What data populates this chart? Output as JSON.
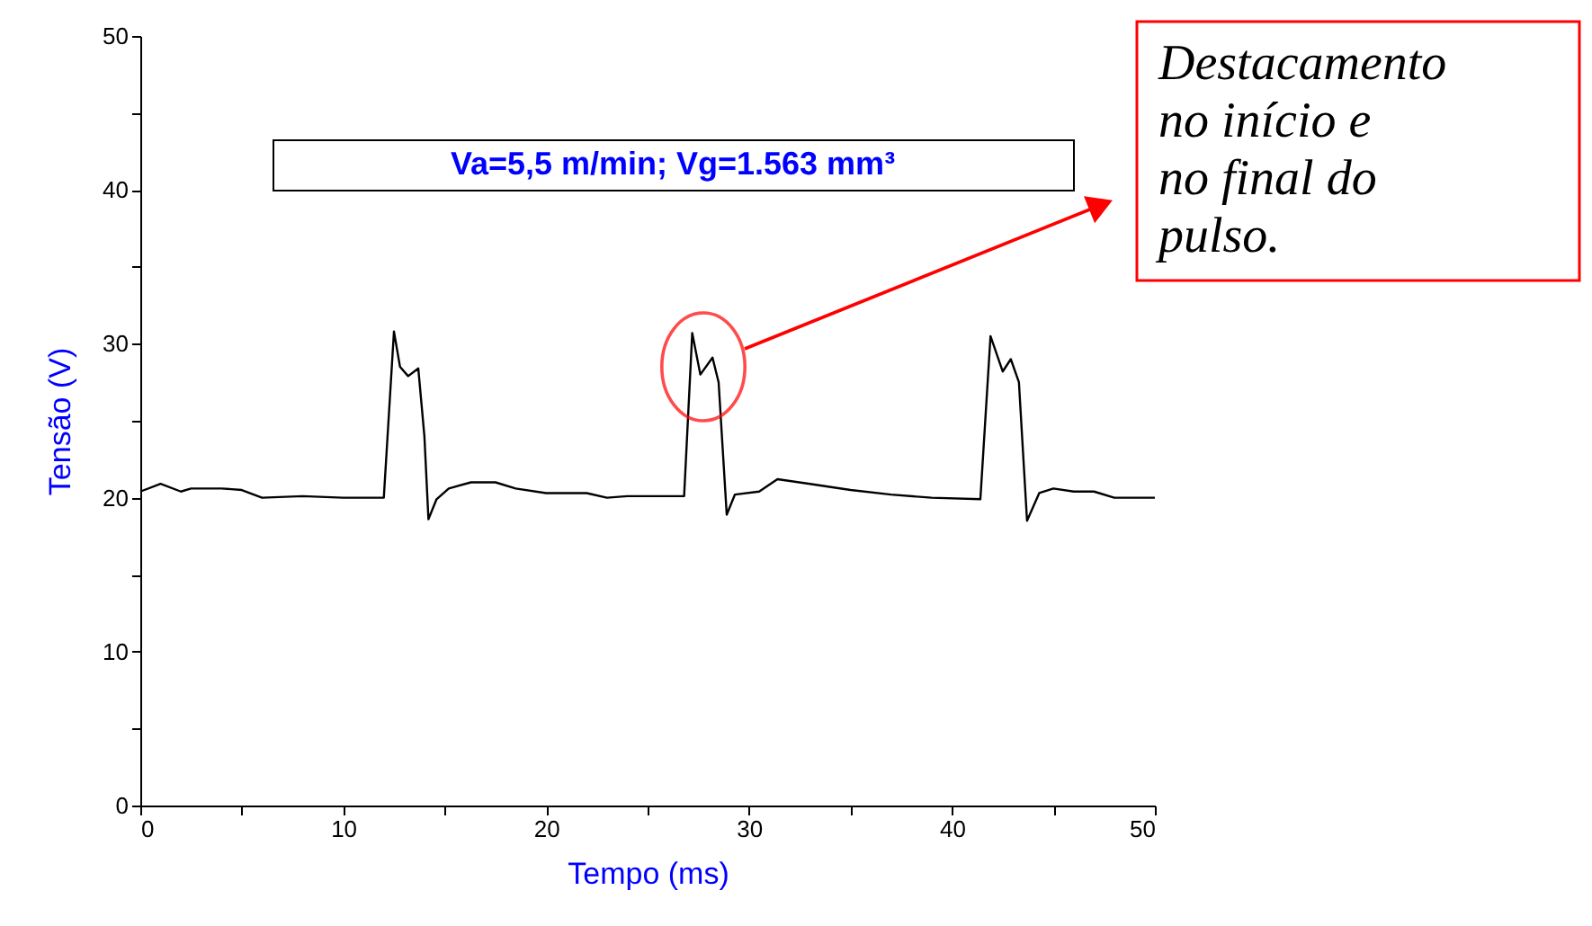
{
  "chart_data": {
    "type": "line",
    "xlabel": "Tempo (ms)",
    "ylabel": "Tensão (V)",
    "x": [
      0,
      1,
      2,
      2.5,
      4,
      5,
      6,
      8,
      10,
      12.0,
      12.5,
      12.8,
      13.2,
      13.7,
      14.0,
      14.2,
      14.6,
      15.2,
      16.3,
      17.5,
      18.5,
      20,
      22,
      23,
      24,
      25,
      26.8,
      27.2,
      27.6,
      28.2,
      28.5,
      28.9,
      29.3,
      30.5,
      31.4,
      33,
      35,
      37,
      39,
      41.4,
      41.9,
      42.5,
      42.9,
      43.3,
      43.7,
      44.3,
      45,
      46,
      47,
      48,
      50
    ],
    "series": [
      {
        "color": "#000000",
        "values": [
          20.4,
          20.9,
          20.4,
          20.6,
          20.6,
          20.5,
          20.0,
          20.1,
          20.0,
          20.0,
          30.8,
          28.5,
          27.9,
          28.4,
          24.0,
          18.6,
          19.9,
          20.6,
          21.0,
          21.0,
          20.6,
          20.3,
          20.3,
          20.0,
          20.1,
          20.1,
          20.1,
          30.7,
          28.0,
          29.1,
          27.5,
          18.9,
          20.2,
          20.4,
          21.2,
          20.9,
          20.5,
          20.2,
          20.0,
          19.9,
          30.5,
          28.2,
          29.0,
          27.5,
          18.5,
          20.3,
          20.6,
          20.4,
          20.4,
          20.0,
          20.0
        ]
      }
    ],
    "xlim": [
      0,
      50
    ],
    "xticks": [
      0,
      {
        "value": 5,
        "label": null
      },
      10,
      {
        "value": 15,
        "label": null
      },
      20,
      {
        "value": 25,
        "label": null
      },
      30,
      {
        "value": 35,
        "label": null
      },
      40,
      {
        "value": 45,
        "label": null
      },
      50
    ],
    "ylim": [
      0,
      50
    ],
    "yticks": [
      0,
      {
        "value": 5,
        "label": null
      },
      10,
      {
        "value": 15,
        "label": null
      },
      20,
      {
        "value": 25,
        "label": null
      },
      30,
      {
        "value": 35,
        "label": null
      },
      40,
      {
        "value": 45,
        "label": null
      },
      50
    ],
    "grid": false,
    "marker": "none",
    "line_style": "solid",
    "annotations": [
      "Va=5,5 m/min; Vg=1.563 mm³",
      "Destacamento no início e no final do pulso."
    ]
  }
}
